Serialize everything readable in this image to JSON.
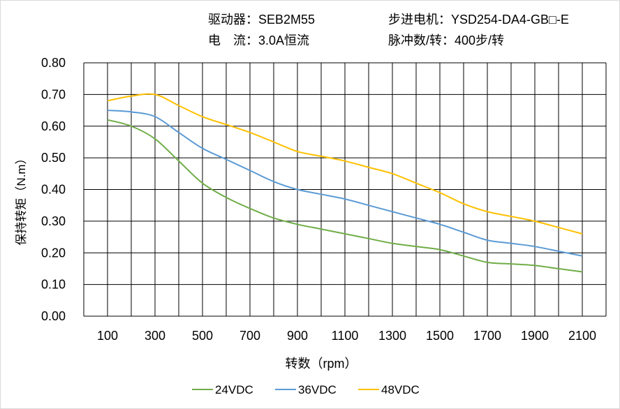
{
  "header": {
    "driver": "驱动器：SEB2M55",
    "motor": "步进电机：YSD254-DA4-GB□-E",
    "current": "电　流：3.0A恒流",
    "pulses": "脉冲数/转：400步/转"
  },
  "chart_data": {
    "type": "line",
    "title": "",
    "xlabel": "转数（rpm）",
    "ylabel": "保持转矩（N.m）",
    "xlim": [
      0,
      2200
    ],
    "ylim": [
      0,
      0.8
    ],
    "grid": true,
    "legend": "bottom",
    "x_ticks": [
      "100",
      "300",
      "500",
      "700",
      "900",
      "1100",
      "1300",
      "1500",
      "1700",
      "1900",
      "2100"
    ],
    "y_ticks": [
      "0.00",
      "0.10",
      "0.20",
      "0.30",
      "0.40",
      "0.50",
      "0.60",
      "0.70",
      "0.80"
    ],
    "x": [
      100,
      200,
      300,
      400,
      500,
      600,
      700,
      800,
      900,
      1000,
      1100,
      1200,
      1300,
      1400,
      1500,
      1600,
      1700,
      1800,
      1900,
      2000,
      2100
    ],
    "series": [
      {
        "name": "24VDC",
        "color": "#70ad47",
        "values": [
          0.62,
          0.6,
          0.56,
          0.49,
          0.42,
          0.375,
          0.34,
          0.31,
          0.29,
          0.275,
          0.26,
          0.245,
          0.23,
          0.22,
          0.21,
          0.19,
          0.17,
          0.165,
          0.16,
          0.15,
          0.14
        ]
      },
      {
        "name": "36VDC",
        "color": "#5b9bd5",
        "values": [
          0.65,
          0.645,
          0.63,
          0.58,
          0.53,
          0.495,
          0.46,
          0.425,
          0.4,
          0.385,
          0.37,
          0.35,
          0.33,
          0.31,
          0.29,
          0.265,
          0.24,
          0.23,
          0.22,
          0.205,
          0.19
        ]
      },
      {
        "name": "48VDC",
        "color": "#ffc000",
        "values": [
          0.68,
          0.695,
          0.7,
          0.665,
          0.63,
          0.605,
          0.58,
          0.55,
          0.52,
          0.505,
          0.49,
          0.47,
          0.45,
          0.42,
          0.39,
          0.355,
          0.33,
          0.315,
          0.3,
          0.28,
          0.26
        ]
      }
    ]
  }
}
